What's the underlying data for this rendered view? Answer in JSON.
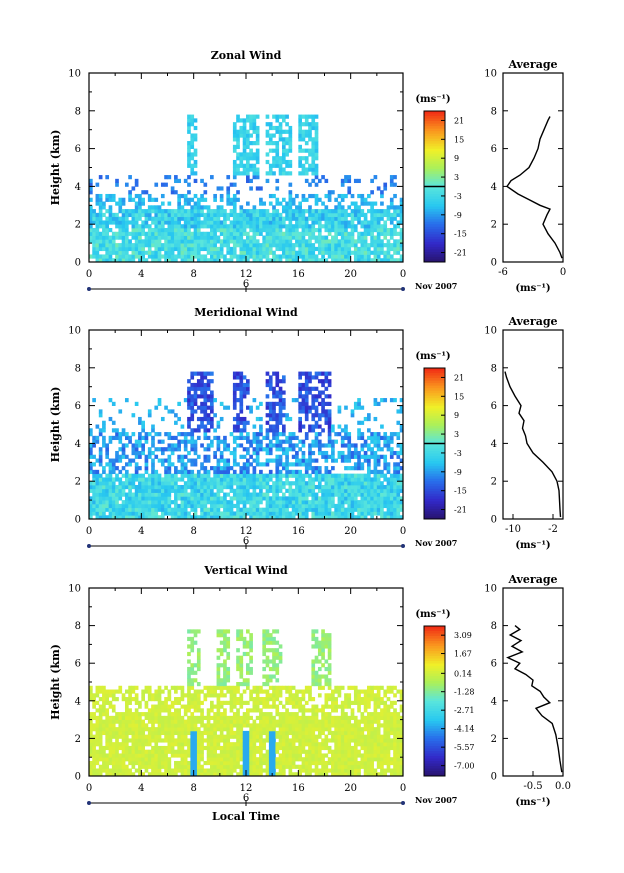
{
  "chart_data": [
    {
      "type": "heatmap",
      "title": "Zonal Wind",
      "xlabel": "",
      "ylabel": "Height (km)",
      "xlim": [
        0,
        24
      ],
      "ylim": [
        0,
        10
      ],
      "x_ticks": [
        "0",
        "4",
        "8",
        "12",
        "16",
        "20",
        "0"
      ],
      "y_ticks": [
        "0",
        "2",
        "4",
        "6",
        "8",
        "10"
      ],
      "date_marker": "6",
      "date_label": "Nov 2007",
      "colorbar": {
        "unit": "(ms⁻¹)",
        "range": [
          -24,
          24
        ],
        "ticks": [
          "21",
          "15",
          "9",
          "3",
          "-3",
          "-9",
          "-15",
          "-21"
        ],
        "zero_line": 0
      },
      "avg_profile": {
        "title": "Average",
        "xlabel": "(ms⁻¹)",
        "xlim": [
          -6,
          0
        ],
        "x_ticks": [
          "-6",
          "0"
        ],
        "y_ticks": [
          "0",
          "2",
          "4",
          "6",
          "8",
          "10"
        ],
        "heights": [
          0.2,
          0.5,
          1.0,
          1.5,
          2.0,
          2.5,
          2.8,
          3.0,
          3.3,
          3.6,
          4.0,
          4.3,
          4.6,
          5.0,
          5.5,
          6.0,
          6.5,
          7.0,
          7.5,
          7.7
        ],
        "values": [
          -0.1,
          -0.3,
          -0.8,
          -1.5,
          -2.0,
          -1.6,
          -1.3,
          -2.3,
          -3.4,
          -4.5,
          -5.6,
          -5.2,
          -4.3,
          -3.4,
          -2.9,
          -2.5,
          -2.3,
          -1.9,
          -1.5,
          -1.3
        ]
      }
    },
    {
      "type": "heatmap",
      "title": "Meridional Wind",
      "xlabel": "",
      "ylabel": "Height (km)",
      "xlim": [
        0,
        24
      ],
      "ylim": [
        0,
        10
      ],
      "x_ticks": [
        "0",
        "4",
        "8",
        "12",
        "16",
        "20",
        "0"
      ],
      "y_ticks": [
        "0",
        "2",
        "4",
        "6",
        "8",
        "10"
      ],
      "date_marker": "6",
      "date_label": "Nov 2007",
      "colorbar": {
        "unit": "(ms⁻¹)",
        "range": [
          -24,
          24
        ],
        "ticks": [
          "21",
          "15",
          "9",
          "3",
          "-3",
          "-9",
          "-15",
          "-21"
        ],
        "zero_line": 0
      },
      "avg_profile": {
        "title": "Average",
        "xlabel": "(ms⁻¹)",
        "xlim": [
          -12,
          0
        ],
        "x_ticks": [
          "-10",
          "-2"
        ],
        "y_ticks": [
          "0",
          "2",
          "4",
          "6",
          "8",
          "10"
        ],
        "heights": [
          0.1,
          0.5,
          1.0,
          1.5,
          2.0,
          2.5,
          3.0,
          3.5,
          4.0,
          4.4,
          4.8,
          5.2,
          5.6,
          6.0,
          6.5,
          7.0,
          7.5,
          7.8
        ],
        "values": [
          -0.5,
          -0.6,
          -0.7,
          -0.8,
          -1.2,
          -2.2,
          -4.0,
          -6.0,
          -7.2,
          -7.5,
          -8.1,
          -7.8,
          -8.8,
          -8.4,
          -9.6,
          -10.6,
          -11.3,
          -11.6
        ]
      }
    },
    {
      "type": "heatmap",
      "title": "Vertical Wind",
      "xlabel": "Local Time",
      "ylabel": "Height (km)",
      "xlim": [
        0,
        24
      ],
      "ylim": [
        0,
        10
      ],
      "x_ticks": [
        "0",
        "4",
        "8",
        "12",
        "16",
        "20",
        "0"
      ],
      "y_ticks": [
        "0",
        "2",
        "4",
        "6",
        "8",
        "10"
      ],
      "date_marker": "6",
      "date_label": "Nov 2007",
      "colorbar": {
        "unit": "(ms⁻¹)",
        "range": [
          -7.8,
          3.8
        ],
        "ticks": [
          "3.09",
          "1.67",
          "0.14",
          "-1.28",
          "-2.71",
          "-4.14",
          "-5.57",
          "-7.00"
        ]
      },
      "avg_profile": {
        "title": "Average",
        "xlabel": "(ms⁻¹)",
        "xlim": [
          -1.0,
          0.0
        ],
        "x_ticks": [
          "-0.5",
          "0.0"
        ],
        "y_ticks": [
          "0",
          "2",
          "4",
          "6",
          "8",
          "10"
        ],
        "heights": [
          0.2,
          0.8,
          1.5,
          2.2,
          2.8,
          3.2,
          3.6,
          3.9,
          4.2,
          4.5,
          4.8,
          5.1,
          5.4,
          5.7,
          6.0,
          6.3,
          6.6,
          6.9,
          7.2,
          7.5,
          7.8,
          8.0
        ],
        "values": [
          -0.02,
          -0.05,
          -0.08,
          -0.12,
          -0.18,
          -0.35,
          -0.45,
          -0.22,
          -0.32,
          -0.38,
          -0.52,
          -0.5,
          -0.62,
          -0.8,
          -0.72,
          -0.92,
          -0.68,
          -0.85,
          -0.7,
          -0.88,
          -0.72,
          -0.8
        ]
      }
    }
  ]
}
